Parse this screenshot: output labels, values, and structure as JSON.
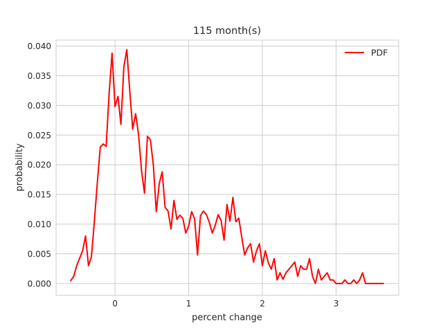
{
  "chart_data": {
    "type": "line",
    "title": "115 month(s)",
    "xlabel": "percent change",
    "ylabel": "probability",
    "xlim": [
      -0.8,
      3.85
    ],
    "ylim": [
      -0.002,
      0.041
    ],
    "xticks": [
      0,
      1,
      2,
      3
    ],
    "xtick_labels": [
      "0",
      "1",
      "2",
      "3"
    ],
    "yticks": [
      0.0,
      0.005,
      0.01,
      0.015,
      0.02,
      0.025,
      0.03,
      0.035,
      0.04
    ],
    "ytick_labels": [
      "0.000",
      "0.005",
      "0.010",
      "0.015",
      "0.020",
      "0.025",
      "0.030",
      "0.035",
      "0.040"
    ],
    "grid": true,
    "legend_position": "top-right",
    "series": [
      {
        "name": "PDF",
        "color": "#ff0000",
        "x": [
          -0.6,
          -0.56,
          -0.52,
          -0.44,
          -0.4,
          -0.36,
          -0.32,
          -0.28,
          -0.24,
          -0.2,
          -0.16,
          -0.12,
          -0.08,
          -0.04,
          0.0,
          0.04,
          0.08,
          0.12,
          0.16,
          0.2,
          0.24,
          0.28,
          0.32,
          0.36,
          0.4,
          0.44,
          0.48,
          0.52,
          0.56,
          0.6,
          0.64,
          0.68,
          0.72,
          0.76,
          0.8,
          0.84,
          0.88,
          0.92,
          0.96,
          1.0,
          1.04,
          1.08,
          1.12,
          1.16,
          1.2,
          1.24,
          1.28,
          1.32,
          1.36,
          1.4,
          1.44,
          1.48,
          1.52,
          1.56,
          1.6,
          1.64,
          1.68,
          1.72,
          1.76,
          1.8,
          1.84,
          1.88,
          1.92,
          1.96,
          2.0,
          2.04,
          2.08,
          2.12,
          2.16,
          2.2,
          2.24,
          2.28,
          2.32,
          2.36,
          2.4,
          2.44,
          2.48,
          2.52,
          2.56,
          2.6,
          2.64,
          2.68,
          2.72,
          2.76,
          2.8,
          2.84,
          2.88,
          2.92,
          2.96,
          3.0,
          3.04,
          3.08,
          3.12,
          3.16,
          3.2,
          3.24,
          3.28,
          3.32,
          3.36,
          3.4,
          3.44,
          3.48,
          3.52,
          3.56,
          3.6,
          3.64
        ],
        "y": [
          0.0005,
          0.0012,
          0.003,
          0.0055,
          0.008,
          0.003,
          0.0045,
          0.0105,
          0.017,
          0.023,
          0.0235,
          0.0231,
          0.032,
          0.0388,
          0.0298,
          0.0315,
          0.0268,
          0.0365,
          0.0394,
          0.0325,
          0.026,
          0.0286,
          0.025,
          0.019,
          0.0152,
          0.0248,
          0.0242,
          0.02,
          0.0121,
          0.0168,
          0.0188,
          0.0128,
          0.0122,
          0.0092,
          0.014,
          0.0108,
          0.0115,
          0.011,
          0.0085,
          0.0097,
          0.0121,
          0.0109,
          0.0048,
          0.0114,
          0.0122,
          0.0116,
          0.0103,
          0.0085,
          0.0098,
          0.0116,
          0.0106,
          0.0073,
          0.0133,
          0.0105,
          0.0145,
          0.0104,
          0.011,
          0.0078,
          0.0048,
          0.006,
          0.0067,
          0.0036,
          0.0055,
          0.0067,
          0.003,
          0.0055,
          0.0035,
          0.0024,
          0.0042,
          0.0006,
          0.0018,
          0.0007,
          0.0018,
          0.0024,
          0.003,
          0.0036,
          0.0012,
          0.003,
          0.0024,
          0.0024,
          0.0042,
          0.0012,
          0.0,
          0.0024,
          0.0006,
          0.0012,
          0.0018,
          0.0006,
          0.0006,
          0.0,
          0.0,
          0.0,
          0.0006,
          0.0,
          0.0,
          0.0006,
          0.0,
          0.0006,
          0.0018,
          0.0,
          0.0,
          0.0,
          0.0,
          0.0,
          0.0,
          0.0
        ]
      }
    ]
  }
}
